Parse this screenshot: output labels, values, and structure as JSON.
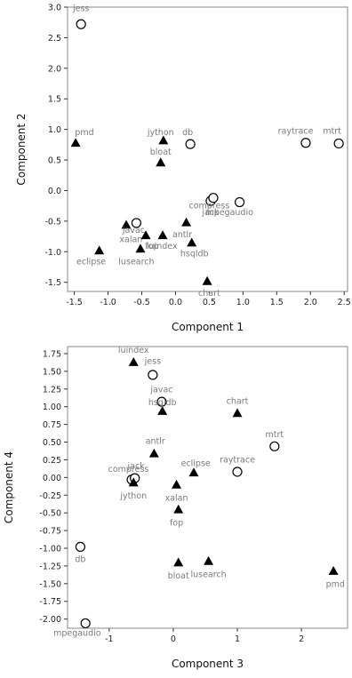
{
  "chart_data": [
    {
      "type": "scatter",
      "xlabel": "Component 1",
      "ylabel": "Component 2",
      "xlim": [
        -1.6,
        2.55
      ],
      "ylim": [
        -1.65,
        3.0
      ],
      "xticks": [
        -1.5,
        -1,
        -0.5,
        0,
        0.5,
        1,
        1.5,
        2,
        2.5
      ],
      "xtick_labels": [
        "-1.5",
        "-1.0",
        "-0.5",
        "0.0",
        "0.5",
        "1.0",
        "1.5",
        "2.0",
        "2.5"
      ],
      "yticks": [
        -1.5,
        -1,
        -0.5,
        0,
        0.5,
        1,
        1.5,
        2,
        2.5,
        3
      ],
      "ytick_labels": [
        "-1.5",
        "-1.0",
        "-0.5",
        "0.0",
        "0.5",
        "1.0",
        "1.5",
        "2.0",
        "2.5",
        "3.0"
      ],
      "points": [
        {
          "label": "jess",
          "x": -1.4,
          "y": 2.72,
          "marker": "circle",
          "lx": -1.4,
          "ly": 2.98
        },
        {
          "label": "pmd",
          "x": -1.48,
          "y": 0.78,
          "marker": "triangle",
          "lx": -1.35,
          "ly": 0.95
        },
        {
          "label": "jython",
          "x": -0.18,
          "y": 0.82,
          "marker": "triangle",
          "lx": -0.22,
          "ly": 0.95
        },
        {
          "label": "db",
          "x": 0.22,
          "y": 0.76,
          "marker": "circle",
          "lx": 0.18,
          "ly": 0.95
        },
        {
          "label": "bloat",
          "x": -0.22,
          "y": 0.46,
          "marker": "triangle",
          "lx": -0.22,
          "ly": 0.63
        },
        {
          "label": "raytrace",
          "x": 1.93,
          "y": 0.78,
          "marker": "circle",
          "lx": 1.78,
          "ly": 0.97
        },
        {
          "label": "mtrt",
          "x": 2.42,
          "y": 0.77,
          "marker": "circle",
          "lx": 2.32,
          "ly": 0.97
        },
        {
          "label": "compress",
          "x": 0.52,
          "y": -0.17,
          "marker": "circle",
          "lx": 0.5,
          "ly": -0.25
        },
        {
          "label": "jack",
          "x": 0.56,
          "y": -0.12,
          "marker": "circle",
          "lx": 0.52,
          "ly": -0.36
        },
        {
          "label": "mpegaudio",
          "x": 0.95,
          "y": -0.19,
          "marker": "circle",
          "lx": 0.8,
          "ly": -0.36
        },
        {
          "label": "javac",
          "x": -0.73,
          "y": -0.56,
          "marker": "triangle",
          "lx": -0.62,
          "ly": -0.65
        },
        {
          "label": "xalan",
          "x": -0.58,
          "y": -0.53,
          "marker": "circle",
          "lx": -0.66,
          "ly": -0.8
        },
        {
          "label": "antlr",
          "x": 0.16,
          "y": -0.52,
          "marker": "triangle",
          "lx": 0.1,
          "ly": -0.72
        },
        {
          "label": "fop",
          "x": -0.44,
          "y": -0.73,
          "marker": "triangle",
          "lx": -0.35,
          "ly": -0.91
        },
        {
          "label": "luindex",
          "x": -0.19,
          "y": -0.73,
          "marker": "triangle",
          "lx": -0.2,
          "ly": -0.91
        },
        {
          "label": "hsqldb",
          "x": 0.24,
          "y": -0.85,
          "marker": "triangle",
          "lx": 0.28,
          "ly": -1.03
        },
        {
          "label": "eclipse",
          "x": -1.13,
          "y": -0.98,
          "marker": "triangle",
          "lx": -1.25,
          "ly": -1.16
        },
        {
          "label": "lusearch",
          "x": -0.52,
          "y": -0.95,
          "marker": "triangle",
          "lx": -0.58,
          "ly": -1.16
        },
        {
          "label": "chart",
          "x": 0.47,
          "y": -1.48,
          "marker": "triangle",
          "lx": 0.5,
          "ly": -1.68
        }
      ]
    },
    {
      "type": "scatter",
      "xlabel": "Component 3",
      "ylabel": "Component 4",
      "xlim": [
        -1.65,
        2.72
      ],
      "ylim": [
        -2.13,
        1.85
      ],
      "xticks": [
        -1,
        0,
        1,
        2
      ],
      "xtick_labels": [
        "-1",
        "0",
        "1",
        "2"
      ],
      "yticks": [
        -2.0,
        -1.75,
        -1.5,
        -1.25,
        -1.0,
        -0.75,
        -0.5,
        -0.25,
        0,
        0.25,
        0.5,
        0.75,
        1.0,
        1.25,
        1.5,
        1.75
      ],
      "ytick_labels": [
        "-2.00",
        "-1.75",
        "-1.50",
        "-1.25",
        "-1.00",
        "-0.75",
        "-0.50",
        "-0.25",
        "0.00",
        "0.25",
        "0.50",
        "0.75",
        "1.00",
        "1.25",
        "1.50",
        "1.75"
      ],
      "points": [
        {
          "label": "luindex",
          "x": -0.62,
          "y": 1.63,
          "marker": "triangle",
          "lx": -0.62,
          "ly": 1.8
        },
        {
          "label": "jess",
          "x": -0.32,
          "y": 1.45,
          "marker": "circle",
          "lx": -0.32,
          "ly": 1.64
        },
        {
          "label": "javac",
          "x": -0.18,
          "y": 1.07,
          "marker": "circle",
          "lx": -0.18,
          "ly": 1.24
        },
        {
          "label": "hsqldb",
          "x": -0.17,
          "y": 0.94,
          "marker": "triangle",
          "lx": -0.17,
          "ly": 1.06
        },
        {
          "label": "chart",
          "x": 1.0,
          "y": 0.91,
          "marker": "triangle",
          "lx": 1.0,
          "ly": 1.08
        },
        {
          "label": "mtrt",
          "x": 1.58,
          "y": 0.44,
          "marker": "circle",
          "lx": 1.58,
          "ly": 0.61
        },
        {
          "label": "antlr",
          "x": -0.3,
          "y": 0.34,
          "marker": "triangle",
          "lx": -0.28,
          "ly": 0.51
        },
        {
          "label": "raytrace",
          "x": 1.0,
          "y": 0.08,
          "marker": "circle",
          "lx": 1.0,
          "ly": 0.25
        },
        {
          "label": "eclipse",
          "x": 0.32,
          "y": 0.07,
          "marker": "triangle",
          "lx": 0.35,
          "ly": 0.2
        },
        {
          "label": "compress",
          "x": -0.65,
          "y": -0.03,
          "marker": "circle",
          "lx": -0.7,
          "ly": 0.12
        },
        {
          "label": "jack",
          "x": -0.6,
          "y": -0.01,
          "marker": "circle",
          "lx": -0.58,
          "ly": 0.16
        },
        {
          "label": "jython",
          "x": -0.62,
          "y": -0.07,
          "marker": "triangle",
          "lx": -0.62,
          "ly": -0.26
        },
        {
          "label": "xalan",
          "x": 0.05,
          "y": -0.1,
          "marker": "triangle",
          "lx": 0.05,
          "ly": -0.29
        },
        {
          "label": "fop",
          "x": 0.08,
          "y": -0.45,
          "marker": "triangle",
          "lx": 0.05,
          "ly": -0.64
        },
        {
          "label": "db",
          "x": -1.45,
          "y": -0.98,
          "marker": "circle",
          "lx": -1.45,
          "ly": -1.16
        },
        {
          "label": "bloat",
          "x": 0.08,
          "y": -1.2,
          "marker": "triangle",
          "lx": 0.08,
          "ly": -1.39
        },
        {
          "label": "lusearch",
          "x": 0.55,
          "y": -1.18,
          "marker": "triangle",
          "lx": 0.55,
          "ly": -1.37
        },
        {
          "label": "pmd",
          "x": 2.5,
          "y": -1.32,
          "marker": "triangle",
          "lx": 2.53,
          "ly": -1.51
        },
        {
          "label": "mpegaudio",
          "x": -1.37,
          "y": -2.06,
          "marker": "circle",
          "lx": -1.5,
          "ly": -2.2
        }
      ]
    }
  ]
}
